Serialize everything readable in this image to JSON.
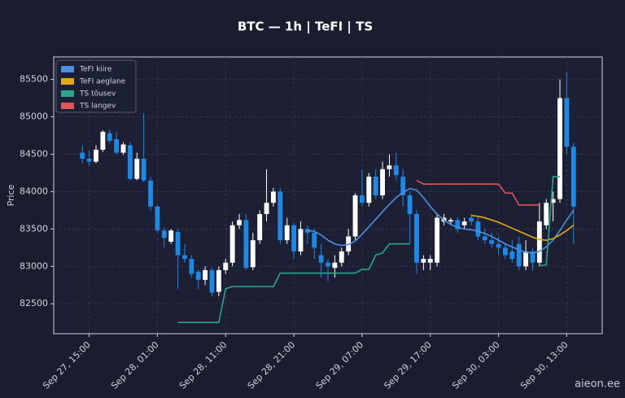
{
  "chart_data": {
    "type": "candlestick",
    "title": "BTC — 1h  |  TeFI  |  TS",
    "y_label": "Price",
    "watermark": "aieon.ee",
    "up_color": "#ffffff",
    "down_color": "#1e88e5",
    "grid": true,
    "legend": "upper left",
    "ylim": [
      82100,
      85800
    ],
    "yticks": [
      82500,
      83000,
      83500,
      84000,
      84500,
      85000,
      85500
    ],
    "x": [
      "Sep 27, 14:00",
      "Sep 27, 15:00",
      "Sep 27, 16:00",
      "Sep 27, 17:00",
      "Sep 27, 18:00",
      "Sep 27, 19:00",
      "Sep 27, 20:00",
      "Sep 27, 21:00",
      "Sep 27, 22:00",
      "Sep 27, 23:00",
      "Sep 28, 00:00",
      "Sep 28, 01:00",
      "Sep 28, 02:00",
      "Sep 28, 03:00",
      "Sep 28, 04:00",
      "Sep 28, 05:00",
      "Sep 28, 06:00",
      "Sep 28, 07:00",
      "Sep 28, 08:00",
      "Sep 28, 09:00",
      "Sep 28, 10:00",
      "Sep 28, 11:00",
      "Sep 28, 12:00",
      "Sep 28, 13:00",
      "Sep 28, 14:00",
      "Sep 28, 15:00",
      "Sep 28, 16:00",
      "Sep 28, 17:00",
      "Sep 28, 18:00",
      "Sep 28, 19:00",
      "Sep 28, 20:00",
      "Sep 28, 21:00",
      "Sep 28, 22:00",
      "Sep 28, 23:00",
      "Sep 29, 00:00",
      "Sep 29, 01:00",
      "Sep 29, 02:00",
      "Sep 29, 03:00",
      "Sep 29, 04:00",
      "Sep 29, 05:00",
      "Sep 29, 06:00",
      "Sep 29, 07:00",
      "Sep 29, 08:00",
      "Sep 29, 09:00",
      "Sep 29, 10:00",
      "Sep 29, 11:00",
      "Sep 29, 12:00",
      "Sep 29, 13:00",
      "Sep 29, 14:00",
      "Sep 29, 15:00",
      "Sep 29, 16:00",
      "Sep 29, 17:00",
      "Sep 29, 18:00",
      "Sep 29, 19:00",
      "Sep 29, 20:00",
      "Sep 29, 21:00",
      "Sep 29, 22:00",
      "Sep 29, 23:00",
      "Sep 30, 00:00",
      "Sep 30, 01:00",
      "Sep 30, 02:00",
      "Sep 30, 03:00",
      "Sep 30, 04:00",
      "Sep 30, 05:00",
      "Sep 30, 06:00",
      "Sep 30, 07:00",
      "Sep 30, 08:00",
      "Sep 30, 09:00",
      "Sep 30, 10:00",
      "Sep 30, 11:00",
      "Sep 30, 12:00",
      "Sep 30, 13:00",
      "Sep 30, 14:00"
    ],
    "xticks": [
      "Sep 27, 15:00",
      "Sep 28, 01:00",
      "Sep 28, 11:00",
      "Sep 28, 21:00",
      "Sep 29, 07:00",
      "Sep 29, 17:00",
      "Sep 30, 03:00",
      "Sep 30, 13:00"
    ],
    "open": [
      84520,
      84440,
      84400,
      84560,
      84780,
      84700,
      84520,
      84620,
      84170,
      84440,
      84150,
      83800,
      83480,
      83330,
      83460,
      83150,
      83100,
      82930,
      82820,
      82950,
      82660,
      82950,
      83050,
      83550,
      83620,
      82990,
      83350,
      83700,
      83850,
      84000,
      83350,
      83550,
      83200,
      83500,
      83450,
      83150,
      83050,
      82980,
      83050,
      83200,
      83400,
      83950,
      83850,
      84200,
      83950,
      84300,
      84350,
      84200,
      83950,
      83700,
      83050,
      83050,
      83050,
      83600,
      83600,
      83620,
      83550,
      83650,
      83600,
      83400,
      83350,
      83300,
      83250,
      83200,
      83300,
      83000,
      83200,
      83050,
      83550,
      83850,
      83900,
      85250,
      84600
    ],
    "high": [
      84620,
      84550,
      84620,
      84820,
      84830,
      84800,
      84660,
      84660,
      84520,
      85050,
      84200,
      83820,
      83520,
      83500,
      83500,
      83300,
      83150,
      82950,
      83000,
      82980,
      83000,
      83100,
      83600,
      83700,
      83700,
      83450,
      83750,
      84300,
      84050,
      84050,
      83650,
      83580,
      83600,
      83550,
      83500,
      83300,
      83100,
      83150,
      83250,
      83500,
      83980,
      84300,
      84250,
      84300,
      84400,
      84500,
      84520,
      84300,
      84000,
      83750,
      83150,
      83150,
      83700,
      83700,
      83650,
      83660,
      83650,
      83700,
      83680,
      83500,
      83450,
      83400,
      83300,
      83350,
      83400,
      83350,
      83250,
      83850,
      83900,
      84000,
      85500,
      85600,
      84650
    ],
    "low": [
      84380,
      84340,
      84380,
      84530,
      84650,
      84500,
      84490,
      84150,
      84150,
      84130,
      83750,
      83450,
      83250,
      83300,
      82700,
      83050,
      82850,
      82700,
      82750,
      82600,
      82600,
      82900,
      83000,
      83500,
      82950,
      82950,
      83300,
      83600,
      83800,
      83300,
      83300,
      83100,
      83150,
      83300,
      83100,
      82850,
      82800,
      82850,
      83000,
      83150,
      83350,
      83800,
      83800,
      83900,
      83900,
      84200,
      84150,
      83800,
      83300,
      82900,
      82950,
      82950,
      83000,
      83550,
      83550,
      83450,
      83500,
      83550,
      83350,
      83300,
      83250,
      83150,
      83100,
      83050,
      82950,
      82950,
      82950,
      83000,
      83500,
      83600,
      83850,
      84500,
      83300
    ],
    "close": [
      84440,
      84400,
      84560,
      84800,
      84680,
      84520,
      84630,
      84170,
      84440,
      84150,
      83800,
      83480,
      83380,
      83480,
      83150,
      83100,
      82900,
      82820,
      82950,
      82650,
      82950,
      83050,
      83550,
      83620,
      82980,
      83350,
      83700,
      83850,
      84000,
      83350,
      83550,
      83200,
      83500,
      83450,
      83250,
      83050,
      83000,
      83050,
      83200,
      83400,
      83950,
      83850,
      84200,
      83950,
      84300,
      84350,
      84220,
      83950,
      83700,
      83050,
      83100,
      83100,
      83650,
      83650,
      83620,
      83500,
      83600,
      83600,
      83400,
      83350,
      83300,
      83250,
      83150,
      83100,
      83000,
      83200,
      83050,
      83600,
      83850,
      83900,
      85250,
      84600,
      83800
    ],
    "series": [
      {
        "name": "TeFI kiire",
        "color": "#4a90e2",
        "values": [
          null,
          null,
          null,
          null,
          null,
          null,
          null,
          null,
          null,
          null,
          null,
          null,
          null,
          null,
          null,
          null,
          null,
          null,
          null,
          null,
          null,
          null,
          null,
          null,
          null,
          null,
          null,
          null,
          null,
          null,
          null,
          null,
          null,
          83480,
          83470,
          83420,
          83350,
          83300,
          83280,
          83290,
          83340,
          83430,
          83530,
          83630,
          83730,
          83830,
          83920,
          83990,
          84040,
          84020,
          83920,
          83800,
          83700,
          83620,
          83560,
          83520,
          83500,
          83490,
          83470,
          83440,
          83400,
          83350,
          83300,
          83260,
          83220,
          83190,
          83180,
          83200,
          83260,
          83350,
          83480,
          83620,
          83750
        ]
      },
      {
        "name": "TeFI aeglane",
        "color": "#e6a817",
        "values": [
          null,
          null,
          null,
          null,
          null,
          null,
          null,
          null,
          null,
          null,
          null,
          null,
          null,
          null,
          null,
          null,
          null,
          null,
          null,
          null,
          null,
          null,
          null,
          null,
          null,
          null,
          null,
          null,
          null,
          null,
          null,
          null,
          null,
          null,
          null,
          null,
          null,
          null,
          null,
          null,
          null,
          null,
          null,
          null,
          null,
          null,
          null,
          null,
          null,
          null,
          null,
          null,
          null,
          null,
          null,
          null,
          null,
          83680,
          83670,
          83650,
          83620,
          83590,
          83550,
          83510,
          83470,
          83430,
          83390,
          83360,
          83350,
          83370,
          83420,
          83480,
          83550
        ]
      },
      {
        "name": "TS tõusev",
        "color": "#2aa58a",
        "values": [
          null,
          null,
          null,
          null,
          null,
          null,
          null,
          null,
          null,
          null,
          null,
          null,
          null,
          null,
          82250,
          82250,
          82250,
          82250,
          82250,
          82250,
          82250,
          82700,
          82730,
          82730,
          82730,
          82730,
          82730,
          82730,
          82730,
          82910,
          82910,
          82910,
          82910,
          82910,
          82910,
          82910,
          82910,
          82910,
          82910,
          82910,
          82910,
          82960,
          82960,
          83150,
          83180,
          83300,
          83300,
          83300,
          83300,
          null,
          null,
          null,
          null,
          null,
          null,
          null,
          null,
          null,
          null,
          null,
          null,
          null,
          null,
          null,
          null,
          null,
          null,
          83010,
          83020,
          84200,
          84200,
          null,
          null
        ]
      },
      {
        "name": "TS langev",
        "color": "#e05555",
        "values": [
          null,
          null,
          null,
          null,
          null,
          null,
          null,
          null,
          null,
          null,
          null,
          null,
          null,
          null,
          null,
          null,
          null,
          null,
          null,
          null,
          null,
          null,
          null,
          null,
          null,
          null,
          null,
          null,
          null,
          null,
          null,
          null,
          null,
          null,
          null,
          null,
          null,
          null,
          null,
          null,
          null,
          null,
          null,
          null,
          null,
          null,
          null,
          null,
          null,
          84150,
          84100,
          84100,
          84100,
          84100,
          84100,
          84100,
          84100,
          84100,
          84100,
          84100,
          84100,
          84100,
          83980,
          83980,
          83820,
          83820,
          83820,
          83820,
          null,
          null,
          null,
          null,
          null
        ]
      }
    ]
  }
}
